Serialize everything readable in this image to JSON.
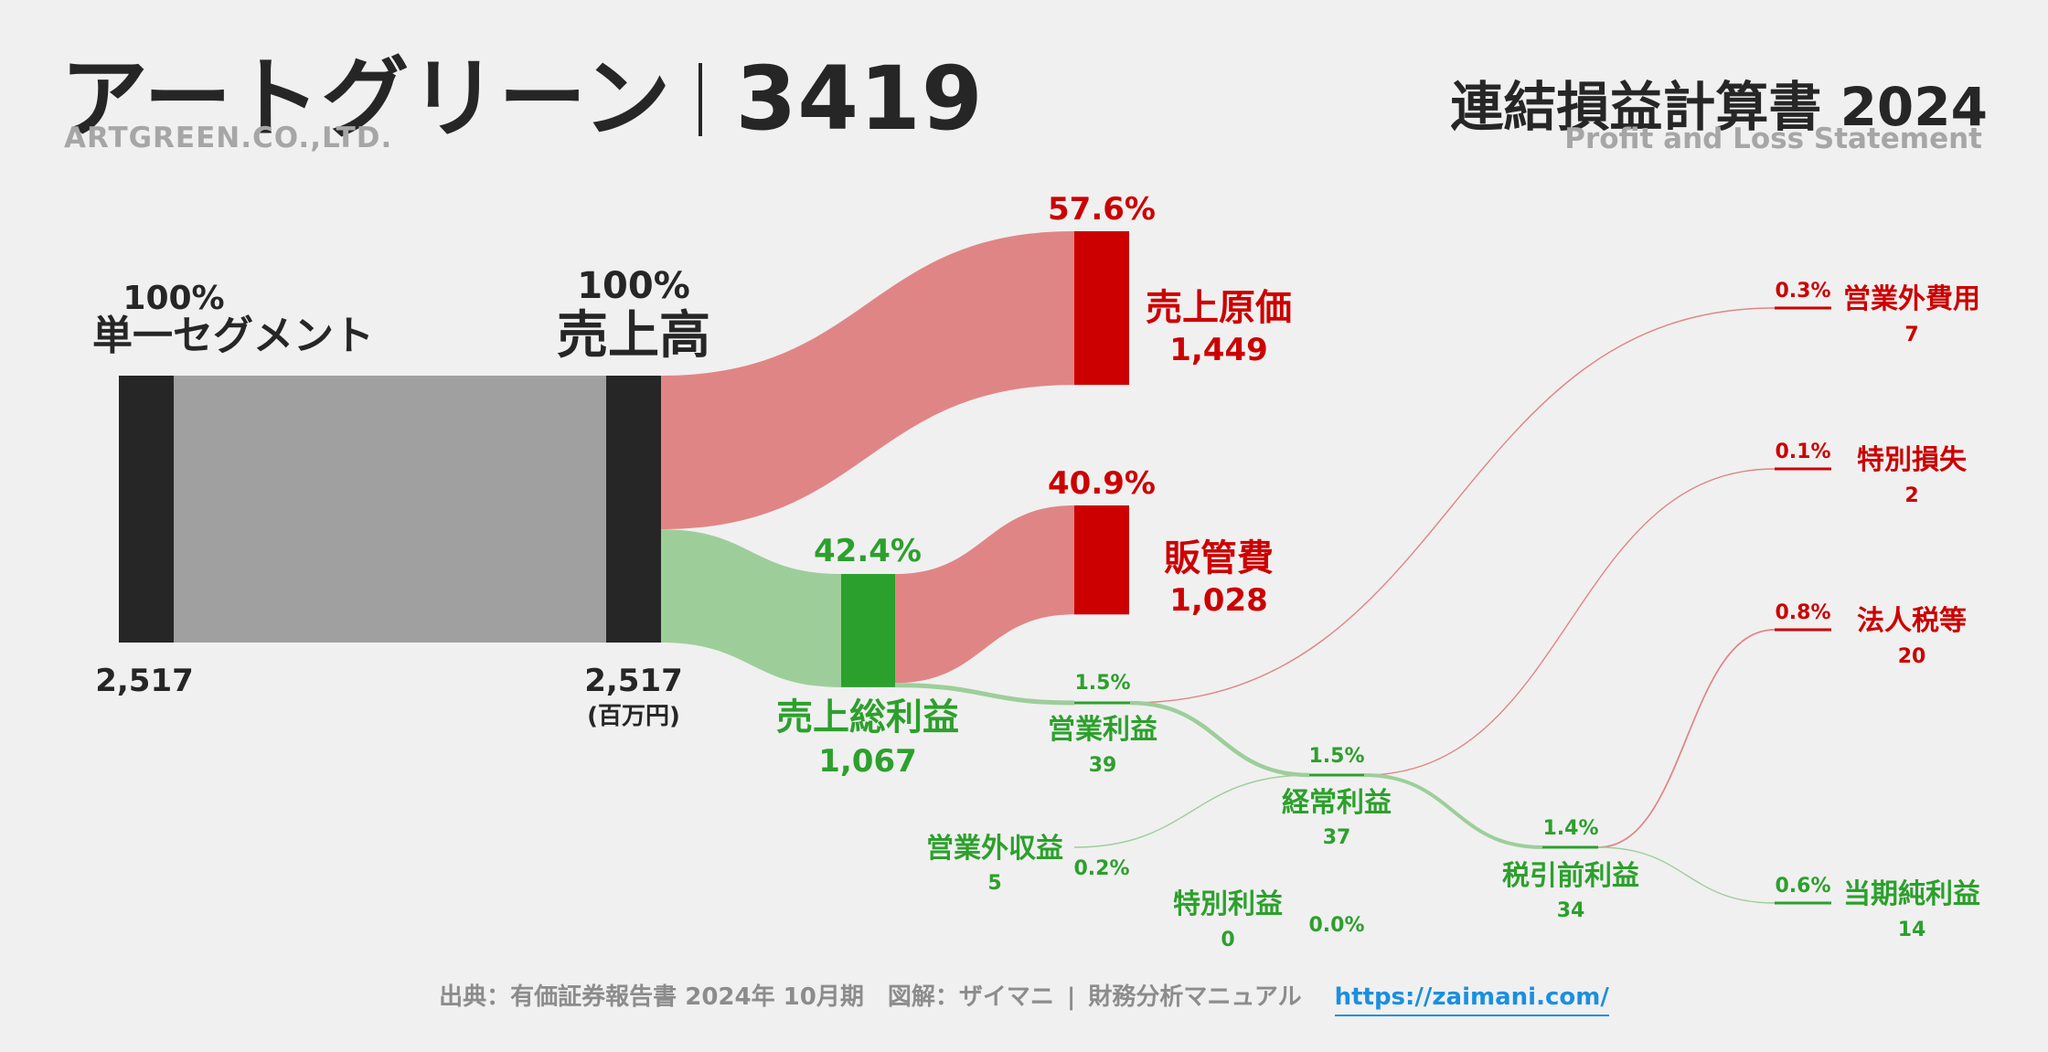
{
  "header": {
    "company": "アートグリーン",
    "code": "3419",
    "company_en": "ARTGREEN.CO.,LTD.",
    "statement": "連結損益計算書 2024",
    "statement_en": "Profit and Loss Statement"
  },
  "colors": {
    "dark": "#262626",
    "grey_flow": "#a0a0a0",
    "cost": "#cc0000",
    "cost_flow": "#e08585",
    "profit": "#2ca02c",
    "profit_flow": "#9dce9a",
    "link": "#1a8fe0"
  },
  "chart_data": {
    "type": "sankey",
    "unit": "(百万円)",
    "nodes": [
      {
        "id": "segment",
        "name": "単一セグメント",
        "value": "2,517",
        "pct": "100%",
        "kind": "neutral"
      },
      {
        "id": "revenue",
        "name": "売上高",
        "value": "2,517",
        "pct": "100%",
        "kind": "neutral"
      },
      {
        "id": "cogs",
        "name": "売上原価",
        "value": "1,449",
        "pct": "57.6%",
        "kind": "cost"
      },
      {
        "id": "gross",
        "name": "売上総利益",
        "value": "1,067",
        "pct": "42.4%",
        "kind": "profit"
      },
      {
        "id": "sga",
        "name": "販管費",
        "value": "1,028",
        "pct": "40.9%",
        "kind": "cost"
      },
      {
        "id": "op",
        "name": "営業利益",
        "value": "39",
        "pct": "1.5%",
        "kind": "profit"
      },
      {
        "id": "nonop_inc",
        "name": "営業外収益",
        "value": "5",
        "pct": "0.2%",
        "kind": "profit"
      },
      {
        "id": "nonop_exp",
        "name": "営業外費用",
        "value": "7",
        "pct": "0.3%",
        "kind": "cost"
      },
      {
        "id": "ordinary",
        "name": "経常利益",
        "value": "37",
        "pct": "1.5%",
        "kind": "profit"
      },
      {
        "id": "sp_gain",
        "name": "特別利益",
        "value": "0",
        "pct": "0.0%",
        "kind": "profit"
      },
      {
        "id": "sp_loss",
        "name": "特別損失",
        "value": "2",
        "pct": "0.1%",
        "kind": "cost"
      },
      {
        "id": "pretax",
        "name": "税引前利益",
        "value": "34",
        "pct": "1.4%",
        "kind": "profit"
      },
      {
        "id": "tax",
        "name": "法人税等",
        "value": "20",
        "pct": "0.8%",
        "kind": "cost"
      },
      {
        "id": "net",
        "name": "当期純利益",
        "value": "14",
        "pct": "0.6%",
        "kind": "profit"
      }
    ],
    "links": [
      {
        "source": "segment",
        "target": "revenue",
        "value": 2517
      },
      {
        "source": "revenue",
        "target": "cogs",
        "value": 1449
      },
      {
        "source": "revenue",
        "target": "gross",
        "value": 1067
      },
      {
        "source": "gross",
        "target": "sga",
        "value": 1028
      },
      {
        "source": "gross",
        "target": "op",
        "value": 39
      },
      {
        "source": "op",
        "target": "nonop_exp",
        "value": 7
      },
      {
        "source": "op",
        "target": "ordinary",
        "value": 37
      },
      {
        "source": "nonop_inc",
        "target": "ordinary",
        "value": 5
      },
      {
        "source": "ordinary",
        "target": "sp_loss",
        "value": 2
      },
      {
        "source": "ordinary",
        "target": "pretax",
        "value": 34
      },
      {
        "source": "sp_gain",
        "target": "pretax",
        "value": 0
      },
      {
        "source": "pretax",
        "target": "tax",
        "value": 20
      },
      {
        "source": "pretax",
        "target": "net",
        "value": 14
      }
    ]
  },
  "footer": {
    "source": "出典：有価証券報告書 2024年 10月期",
    "credit": "図解：ザイマニ",
    "separator": "|",
    "site_name": "財務分析マニュアル",
    "url": "https://zaimani.com/"
  }
}
